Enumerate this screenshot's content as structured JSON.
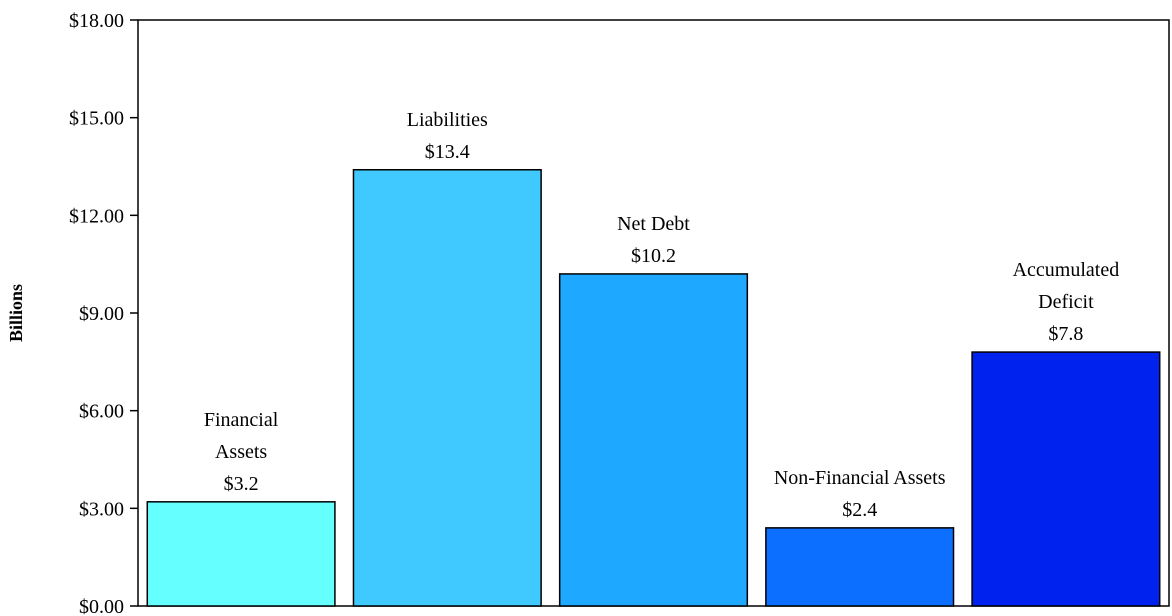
{
  "chart_data": {
    "type": "bar",
    "title": "",
    "xlabel": "",
    "ylabel": "Billions",
    "ylim": [
      0,
      18
    ],
    "yticks": [
      0,
      3,
      6,
      9,
      12,
      15,
      18
    ],
    "ytick_labels": [
      "$0.00",
      "$3.00",
      "$6.00",
      "$9.00",
      "$12.00",
      "$15.00",
      "$18.00"
    ],
    "grid": false,
    "categories": [
      {
        "label_lines": [
          "Financial",
          "Assets"
        ],
        "value": 3.2,
        "value_label": "$3.2",
        "color": "#66FFFF"
      },
      {
        "label_lines": [
          "Liabilities"
        ],
        "value": 13.4,
        "value_label": "$13.4",
        "color": "#40C9FF"
      },
      {
        "label_lines": [
          "Net Debt"
        ],
        "value": 10.2,
        "value_label": "$10.2",
        "color": "#1EA8FF"
      },
      {
        "label_lines": [
          "Non-Financial Assets"
        ],
        "value": 2.4,
        "value_label": "$2.4",
        "color": "#0D6FFF"
      },
      {
        "label_lines": [
          "Accumulated",
          "Deficit"
        ],
        "value": 7.8,
        "value_label": "$7.8",
        "color": "#0022EE"
      }
    ]
  }
}
